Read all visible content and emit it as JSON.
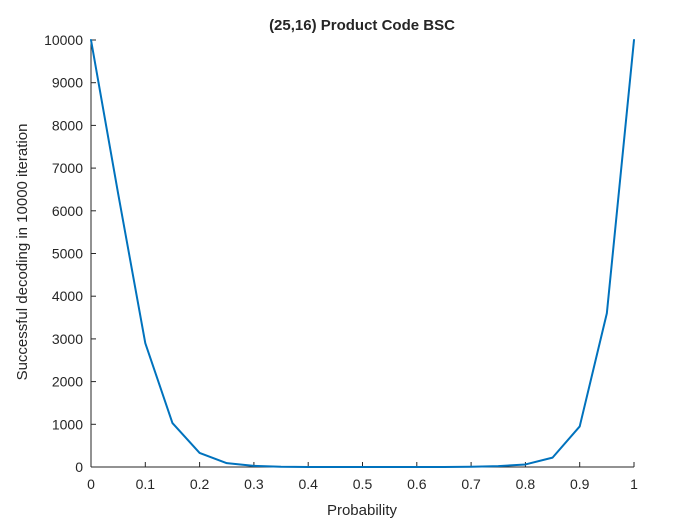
{
  "chart_data": {
    "type": "line",
    "title": "(25,16) Product Code BSC",
    "xlabel": "Probability",
    "ylabel": "Successful decoding in 10000 iteration",
    "xlim": [
      0,
      1
    ],
    "ylim": [
      0,
      10000
    ],
    "x_ticks": [
      "0",
      "0.1",
      "0.2",
      "0.3",
      "0.4",
      "0.5",
      "0.6",
      "0.7",
      "0.8",
      "0.9",
      "1"
    ],
    "y_ticks": [
      "0",
      "1000",
      "2000",
      "3000",
      "4000",
      "5000",
      "6000",
      "7000",
      "8000",
      "9000",
      "10000"
    ],
    "grid": false,
    "legend": "none",
    "series": [
      {
        "color": "#0072BD",
        "x": [
          0,
          0.05,
          0.1,
          0.15,
          0.2,
          0.25,
          0.3,
          0.35,
          0.4,
          0.45,
          0.5,
          0.55,
          0.6,
          0.65,
          0.7,
          0.75,
          0.8,
          0.85,
          0.9,
          0.95,
          1
        ],
        "y": [
          10000,
          6400,
          2900,
          1030,
          330,
          90,
          25,
          5,
          0,
          0,
          0,
          0,
          0,
          0,
          5,
          20,
          60,
          220,
          950,
          3600,
          10000
        ]
      }
    ]
  }
}
